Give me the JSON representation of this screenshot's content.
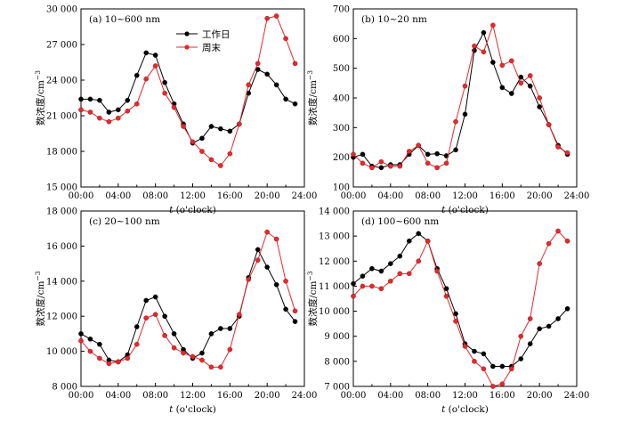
{
  "legend": {
    "workday": "工作日",
    "weekend": "周末"
  },
  "colors": {
    "workday": "#000000",
    "weekend": "#e8282b"
  },
  "y_label_main": "数浓度/cm",
  "y_label_exp": "−3",
  "x_label_italic": "t",
  "x_label_rest": " (o'clock)",
  "chart_data": [
    {
      "type": "line",
      "title": "(a) 10~600 nm",
      "x": [
        0,
        1,
        2,
        3,
        4,
        5,
        6,
        7,
        8,
        9,
        10,
        11,
        12,
        13,
        14,
        15,
        16,
        17,
        18,
        19,
        20,
        21,
        22,
        23
      ],
      "xticks": [
        "00:00",
        "04:00",
        "08:00",
        "12:00",
        "16:00",
        "20:00",
        "24:00"
      ],
      "xlim": [
        0,
        24
      ],
      "ylim": [
        15000,
        30000
      ],
      "yticks": [
        15000,
        18000,
        21000,
        24000,
        27000,
        30000
      ],
      "ytick_labels": [
        "15 000",
        "18 000",
        "21 000",
        "24 000",
        "27 000",
        "30 000"
      ],
      "series": [
        {
          "name": "工作日",
          "values": [
            22400,
            22400,
            22300,
            21300,
            21500,
            22300,
            24400,
            26300,
            26100,
            23800,
            22000,
            20300,
            18700,
            19100,
            20100,
            19900,
            19700,
            20300,
            22900,
            24900,
            24500,
            23600,
            22400,
            22000
          ]
        },
        {
          "name": "周末",
          "values": [
            21500,
            21300,
            20800,
            20500,
            20800,
            21400,
            22000,
            24100,
            25200,
            22900,
            21700,
            20100,
            18800,
            18000,
            17300,
            16800,
            17800,
            20300,
            23600,
            25400,
            29200,
            29400,
            27500,
            25400
          ]
        }
      ]
    },
    {
      "type": "line",
      "title": "(b) 10~20 nm",
      "x": [
        0,
        1,
        2,
        3,
        4,
        5,
        6,
        7,
        8,
        9,
        10,
        11,
        12,
        13,
        14,
        15,
        16,
        17,
        18,
        19,
        20,
        21,
        22,
        23
      ],
      "xticks": [
        "00:00",
        "04:00",
        "08:00",
        "12:00",
        "16:00",
        "20:00",
        "24:00"
      ],
      "xlim": [
        0,
        24
      ],
      "ylim": [
        100,
        700
      ],
      "yticks": [
        100,
        200,
        300,
        400,
        500,
        600,
        700
      ],
      "ytick_labels": [
        "100",
        "200",
        "300",
        "400",
        "500",
        "600",
        "700"
      ],
      "series": [
        {
          "name": "工作日",
          "values": [
            200,
            210,
            170,
            165,
            175,
            175,
            210,
            240,
            210,
            212,
            205,
            225,
            345,
            560,
            620,
            520,
            435,
            415,
            470,
            440,
            370,
            310,
            240,
            210
          ]
        },
        {
          "name": "周末",
          "values": [
            210,
            180,
            165,
            185,
            170,
            170,
            220,
            240,
            180,
            165,
            180,
            320,
            440,
            575,
            555,
            645,
            510,
            525,
            450,
            475,
            400,
            310,
            235,
            215
          ]
        }
      ]
    },
    {
      "type": "line",
      "title": "(c) 20~100 nm",
      "x": [
        0,
        1,
        2,
        3,
        4,
        5,
        6,
        7,
        8,
        9,
        10,
        11,
        12,
        13,
        14,
        15,
        16,
        17,
        18,
        19,
        20,
        21,
        22,
        23
      ],
      "xticks": [
        "00:00",
        "04:00",
        "08:00",
        "12:00",
        "16:00",
        "20:00",
        "24:00"
      ],
      "xlim": [
        0,
        24
      ],
      "ylim": [
        8000,
        18000
      ],
      "yticks": [
        8000,
        10000,
        12000,
        14000,
        16000,
        18000
      ],
      "ytick_labels": [
        "8 000",
        "10 000",
        "12 000",
        "14 000",
        "16 000",
        "18 000"
      ],
      "series": [
        {
          "name": "工作日",
          "values": [
            11000,
            10700,
            10400,
            9500,
            9400,
            9800,
            11400,
            12900,
            13100,
            12000,
            11000,
            10100,
            9600,
            9900,
            11000,
            11300,
            11300,
            12000,
            14200,
            15800,
            14800,
            13800,
            12400,
            11700
          ]
        },
        {
          "name": "周末",
          "values": [
            10600,
            10000,
            9600,
            9300,
            9400,
            9600,
            10400,
            11900,
            12100,
            10900,
            10200,
            9900,
            9700,
            9500,
            9100,
            9100,
            10100,
            12100,
            14100,
            15200,
            16800,
            16400,
            14000,
            12300
          ]
        }
      ]
    },
    {
      "type": "line",
      "title": "(d) 100~600 nm",
      "x": [
        0,
        1,
        2,
        3,
        4,
        5,
        6,
        7,
        8,
        9,
        10,
        11,
        12,
        13,
        14,
        15,
        16,
        17,
        18,
        19,
        20,
        21,
        22,
        23
      ],
      "xticks": [
        "00:00",
        "04:00",
        "08:00",
        "12:00",
        "16:00",
        "20:00",
        "24:00"
      ],
      "xlim": [
        0,
        24
      ],
      "ylim": [
        7000,
        14000
      ],
      "yticks": [
        7000,
        8000,
        9000,
        10000,
        11000,
        12000,
        13000,
        14000
      ],
      "ytick_labels": [
        "7 000",
        "8 000",
        "9 000",
        "10 000",
        "11 000",
        "12 000",
        "13 000",
        "14 000"
      ],
      "series": [
        {
          "name": "工作日",
          "values": [
            11100,
            11400,
            11700,
            11600,
            11900,
            12200,
            12800,
            13100,
            12800,
            11700,
            10900,
            9900,
            8700,
            8400,
            8300,
            7800,
            7800,
            7800,
            8100,
            8700,
            9300,
            9400,
            9700,
            10100
          ]
        },
        {
          "name": "周末",
          "values": [
            10600,
            11000,
            11000,
            10900,
            11200,
            11500,
            11500,
            12000,
            12800,
            11600,
            10600,
            9600,
            8600,
            8000,
            7700,
            7000,
            7100,
            7700,
            9000,
            9700,
            11900,
            12700,
            13200,
            12800
          ]
        }
      ]
    }
  ]
}
